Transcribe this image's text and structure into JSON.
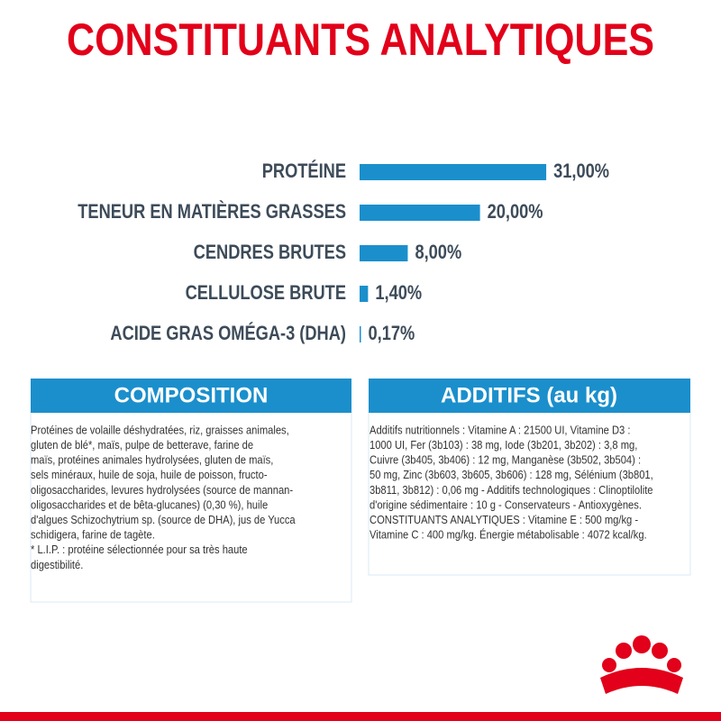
{
  "chart_data": {
    "type": "bar",
    "orientation": "horizontal",
    "title": "CONSTITUANTS ANALYTIQUES",
    "categories": [
      "PROTÉINE",
      "TENEUR EN MATIÈRES GRASSES",
      "CENDRES BRUTES",
      "CELLULOSE BRUTE",
      "ACIDE GRAS OMÉGA-3 (DHA)"
    ],
    "values": [
      31,
      20,
      8,
      1.4,
      0.17
    ],
    "value_labels": [
      "31,00%",
      "20,00%",
      "8,00%",
      "1,40%",
      "0,17%"
    ],
    "color": "#1b8fcc"
  },
  "composition": {
    "title": "COMPOSITION",
    "lines": [
      "Protéines de volaille déshydratées, riz, graisses animales,",
      "gluten de blé*, maïs, pulpe de betterave, farine de",
      "maïs, protéines animales hydrolysées, gluten de maïs,",
      "sels minéraux, huile de soja, huile de poisson, fructo-",
      "oligosaccharides, levures hydrolysées (source de mannan-",
      "oligosaccharides et de bêta-glucanes) (0,30 %), huile",
      "d'algues Schizochytrium sp. (source de DHA), jus de Yucca",
      "schidigera, farine de tagète.",
      "* L.I.P. : protéine sélectionnée pour sa très haute",
      "digestibilité."
    ]
  },
  "additifs": {
    "title": "ADDITIFS (au kg)",
    "lines": [
      "Additifs nutritionnels : Vitamine A : 21500 UI, Vitamine D3 :",
      "1000 UI, Fer (3b103) : 38 mg, Iode (3b201, 3b202) : 3,8 mg,",
      "Cuivre (3b405, 3b406) : 12 mg, Manganèse (3b502, 3b504) :",
      "50 mg, Zinc (3b603, 3b605, 3b606) : 128 mg, Sélénium (3b801,",
      "3b811, 3b812) : 0,06 mg - Additifs technologiques : Clinoptilolite",
      "d'origine sédimentaire : 10 g - Conservateurs - Antioxygènes.",
      "CONSTITUANTS ANALYTIQUES : Vitamine E : 500 mg/kg -",
      "Vitamine C : 400 mg/kg. Énergie métabolisable : 4072 kcal/kg."
    ]
  }
}
